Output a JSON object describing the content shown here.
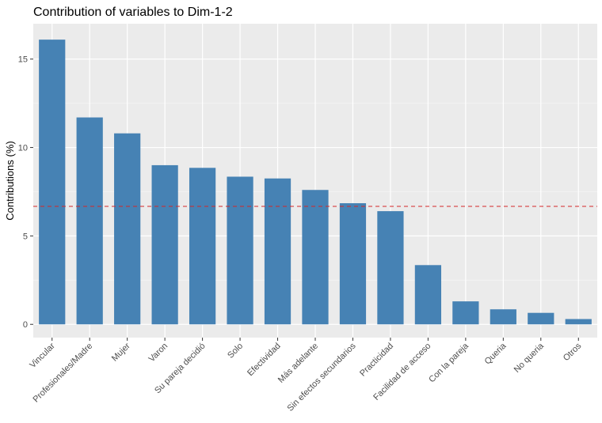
{
  "chart_data": {
    "type": "bar",
    "title": "Contribution of variables to Dim-1-2",
    "xlabel": "",
    "ylabel": "Contributions (%)",
    "categories": [
      "Vincular",
      "Profesionales/Madre",
      "Mujer",
      "Varon",
      "Su pareja decidió",
      "Solo",
      "Efectividad",
      "Más adelante",
      "Sin efectos secundarios",
      "Practicidad",
      "Facilidad de acceso",
      "Con la pareja",
      "Queria",
      "No queria",
      "Otros"
    ],
    "values": [
      16.1,
      11.7,
      10.8,
      9.0,
      8.85,
      8.35,
      8.25,
      7.6,
      6.85,
      6.4,
      3.35,
      1.3,
      0.85,
      0.65,
      0.3
    ],
    "yticks": [
      0,
      5,
      10,
      15
    ],
    "ylim": [
      -0.75,
      17.0
    ],
    "reference_line": 6.67,
    "grid": true,
    "colors": {
      "bar": "#4682B4",
      "panel": "#EBEBEB",
      "grid_major": "#FFFFFF",
      "grid_minor": "#F5F5F5",
      "reference_line": "#D62728"
    }
  }
}
